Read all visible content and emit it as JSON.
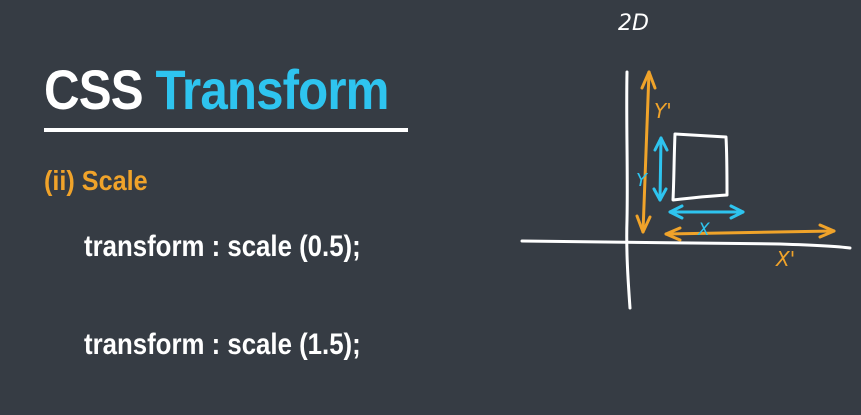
{
  "slide": {
    "title_part1": "CSS",
    "title_part2": "Transform",
    "subtitle": "(ii) Scale",
    "code_lines": [
      "transform : scale (0.5);",
      "transform : scale (1.5);"
    ]
  },
  "diagram": {
    "heading": "2D",
    "label_y_prime": "Y'",
    "label_y": "Y",
    "label_x": "X",
    "label_x_prime": "X'"
  },
  "colors": {
    "background": "#363c44",
    "white": "#ffffff",
    "accent_blue": "#2ec4ef",
    "accent_orange": "#f0a32a"
  }
}
